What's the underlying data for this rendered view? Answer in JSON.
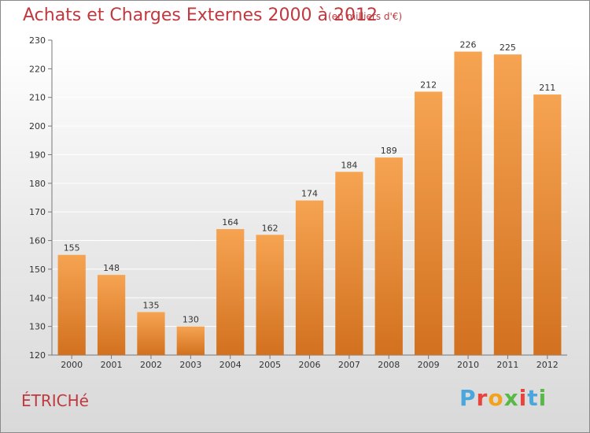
{
  "header": {
    "title": "Achats et Charges Externes 2000 à 2012",
    "subtitle": "(en milliers d'€)"
  },
  "footer": {
    "place": "ÉTRICHé",
    "logo_letters": [
      "P",
      "r",
      "o",
      "x",
      "i",
      "t",
      "i"
    ],
    "logo_colors": [
      "#4aa7dd",
      "#e8433c",
      "#f2a21c",
      "#58b947",
      "#e8433c",
      "#4aa7dd",
      "#58b947"
    ]
  },
  "colors": {
    "bar_top": "#f6a452",
    "bar_bottom": "#d2711f",
    "grid": "#ffffff",
    "text": "#c0393f"
  },
  "chart_data": {
    "type": "bar",
    "title": "Achats et Charges Externes 2000 à 2012",
    "subtitle": "(en milliers d'€)",
    "categories": [
      "2000",
      "2001",
      "2002",
      "2003",
      "2004",
      "2005",
      "2006",
      "2007",
      "2008",
      "2009",
      "2010",
      "2011",
      "2012"
    ],
    "values": [
      155,
      148,
      135,
      130,
      164,
      162,
      174,
      184,
      189,
      212,
      226,
      225,
      211
    ],
    "ylim": [
      120,
      230
    ],
    "yticks": [
      120,
      130,
      140,
      150,
      160,
      170,
      180,
      190,
      200,
      210,
      220,
      230
    ],
    "grid": true,
    "xlabel": "",
    "ylabel": ""
  }
}
